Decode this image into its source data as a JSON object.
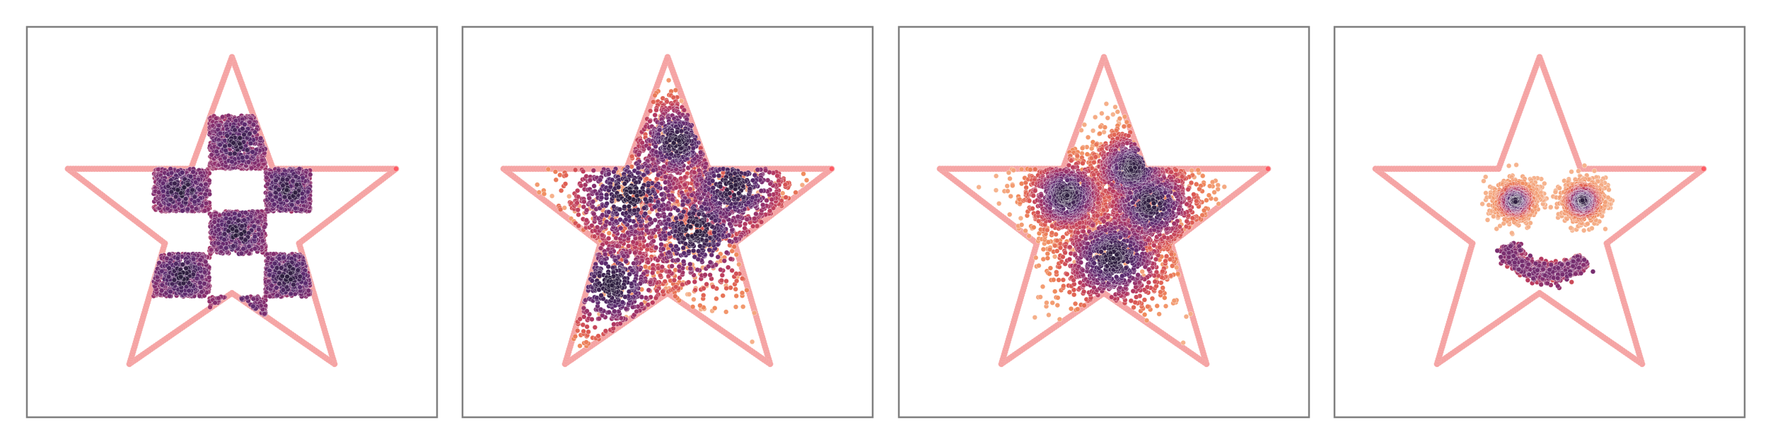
{
  "chart_data": [
    {
      "type": "scatter",
      "panel": 1,
      "xlim": [
        -1.1,
        1.1
      ],
      "ylim": [
        -1.1,
        1.1
      ],
      "grid": false,
      "axes_ticks": false,
      "colormap": [
        "#2d1e3e",
        "#5b2a6f",
        "#8a2f6f",
        "#b8395f",
        "#dd5a52",
        "#f08a5c",
        "#f6b48f"
      ],
      "boundary_color": "#f5a3a3",
      "star_outline": [
        [
          0,
          0.93
        ],
        [
          0.22,
          0.3
        ],
        [
          0.88,
          0.3
        ],
        [
          0.36,
          -0.12
        ],
        [
          0.55,
          -0.8
        ],
        [
          0,
          -0.4
        ],
        [
          -0.55,
          -0.8
        ],
        [
          -0.36,
          -0.12
        ],
        [
          -0.88,
          0.3
        ],
        [
          -0.22,
          0.3
        ]
      ],
      "series": [
        {
          "distribution": "checkerboard",
          "blocks": [
            [
              -0.42,
              0.06,
              -0.12,
              0.3
            ],
            [
              0.18,
              0.06,
              0.42,
              0.3
            ],
            [
              -0.12,
              -0.18,
              0.18,
              0.06
            ],
            [
              -0.42,
              -0.42,
              -0.12,
              -0.18
            ],
            [
              0.18,
              -0.42,
              0.42,
              -0.18
            ],
            [
              -0.12,
              0.3,
              0.18,
              0.6
            ],
            [
              -0.12,
              -0.66,
              0.18,
              -0.42
            ]
          ],
          "n": 5200
        }
      ]
    },
    {
      "type": "scatter",
      "panel": 2,
      "xlim": [
        -1.1,
        1.1
      ],
      "ylim": [
        -1.1,
        1.1
      ],
      "grid": false,
      "axes_ticks": false,
      "series": [
        {
          "distribution": "smeared-checkerboard",
          "clusters": [
            [
              -0.2,
              0.15,
              0.14
            ],
            [
              0.15,
              -0.05,
              0.14
            ],
            [
              0.35,
              0.2,
              0.12
            ],
            [
              -0.3,
              -0.35,
              0.12
            ],
            [
              0.05,
              0.45,
              0.1
            ]
          ],
          "n": 4200
        }
      ]
    },
    {
      "type": "scatter",
      "panel": 3,
      "xlim": [
        -1.1,
        1.1
      ],
      "ylim": [
        -1.1,
        1.1
      ],
      "grid": false,
      "axes_ticks": false,
      "series": [
        {
          "distribution": "blobs",
          "clusters": [
            [
              -0.2,
              0.15,
              0.1
            ],
            [
              0.25,
              0.1,
              0.12
            ],
            [
              0.05,
              -0.2,
              0.14
            ],
            [
              0.15,
              0.3,
              0.1
            ]
          ],
          "n": 4000
        }
      ]
    },
    {
      "type": "scatter",
      "panel": 4,
      "xlim": [
        -1.1,
        1.1
      ],
      "ylim": [
        -1.1,
        1.1
      ],
      "grid": false,
      "axes_ticks": false,
      "series": [
        {
          "distribution": "smiley-face",
          "eyes": [
            [
              -0.13,
              0.12,
              0.06
            ],
            [
              0.23,
              0.12,
              0.06
            ]
          ],
          "mouth_arc": {
            "cx": 0.05,
            "cy": -0.05,
            "r": 0.24,
            "start_deg": 200,
            "end_deg": 320
          },
          "n": 2600
        }
      ]
    }
  ]
}
